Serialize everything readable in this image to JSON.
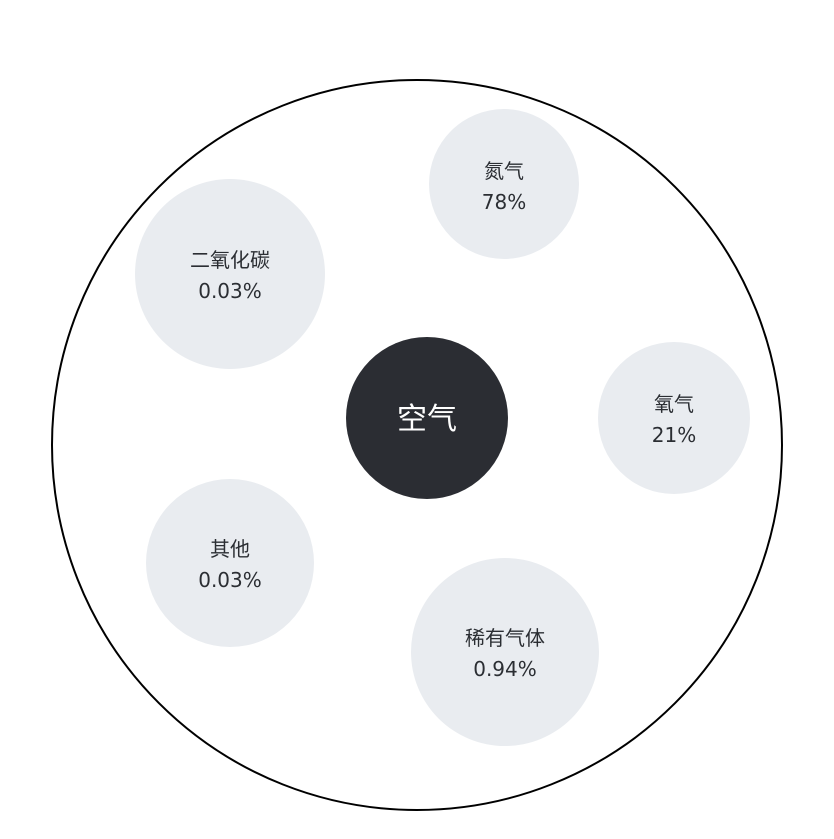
{
  "diagram": {
    "center": {
      "label": "空气",
      "fill": "#2b2d33",
      "text_color": "#ffffff"
    },
    "bubble_fill": "#e9ecf0",
    "outline_color": "#000000",
    "components": [
      {
        "id": "nitrogen",
        "name": "氮气",
        "percent": "78%",
        "share": 78
      },
      {
        "id": "oxygen",
        "name": "氧气",
        "percent": "21%",
        "share": 21
      },
      {
        "id": "noble-gases",
        "name": "稀有气体",
        "percent": "0.94%",
        "share": 0.94
      },
      {
        "id": "other",
        "name": "其他",
        "percent": "0.03%",
        "share": 0.03
      },
      {
        "id": "carbon-dioxide",
        "name": "二氧化碳",
        "percent": "0.03%",
        "share": 0.03
      }
    ]
  }
}
